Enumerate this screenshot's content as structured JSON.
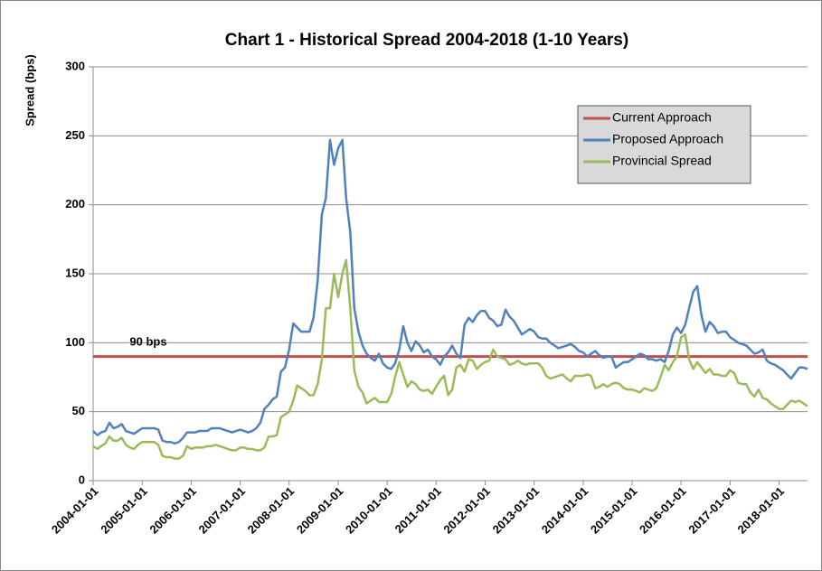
{
  "chart_data": {
    "type": "line",
    "title": "Chart 1 - Historical Spread 2004-2018 (1-10 Years)",
    "y_label": "Spread (bps)",
    "annotation": "90 bps",
    "legend": "upper right",
    "grid": true,
    "ylim": [
      0,
      300
    ],
    "yticks": [
      0,
      50,
      100,
      150,
      200,
      250,
      300
    ],
    "xlim": [
      "2004-01-01",
      "2018-08-01"
    ],
    "xticks": [
      "2004-01-01",
      "2005-01-01",
      "2006-01-01",
      "2007-01-01",
      "2008-01-01",
      "2009-01-01",
      "2010-01-01",
      "2011-01-01",
      "2012-01-01",
      "2013-01-01",
      "2014-01-01",
      "2015-01-01",
      "2016-01-01",
      "2017-01-01",
      "2018-01-01"
    ],
    "x": [
      "2004-01-01",
      "2004-02-01",
      "2004-03-01",
      "2004-04-01",
      "2004-05-01",
      "2004-06-01",
      "2004-07-01",
      "2004-08-01",
      "2004-09-01",
      "2004-10-01",
      "2004-11-01",
      "2004-12-01",
      "2005-01-01",
      "2005-02-01",
      "2005-03-01",
      "2005-04-01",
      "2005-05-01",
      "2005-06-01",
      "2005-07-01",
      "2005-08-01",
      "2005-09-01",
      "2005-10-01",
      "2005-11-01",
      "2005-12-01",
      "2006-01-01",
      "2006-02-01",
      "2006-03-01",
      "2006-04-01",
      "2006-05-01",
      "2006-06-01",
      "2006-07-01",
      "2006-08-01",
      "2006-09-01",
      "2006-10-01",
      "2006-11-01",
      "2006-12-01",
      "2007-01-01",
      "2007-02-01",
      "2007-03-01",
      "2007-04-01",
      "2007-05-01",
      "2007-06-01",
      "2007-07-01",
      "2007-08-01",
      "2007-09-01",
      "2007-10-01",
      "2007-11-01",
      "2007-12-01",
      "2008-01-01",
      "2008-02-01",
      "2008-03-01",
      "2008-04-01",
      "2008-05-01",
      "2008-06-01",
      "2008-07-01",
      "2008-08-01",
      "2008-09-01",
      "2008-10-01",
      "2008-11-01",
      "2008-12-01",
      "2009-01-01",
      "2009-02-01",
      "2009-03-01",
      "2009-04-01",
      "2009-05-01",
      "2009-06-01",
      "2009-07-01",
      "2009-08-01",
      "2009-09-01",
      "2009-10-01",
      "2009-11-01",
      "2009-12-01",
      "2010-01-01",
      "2010-02-01",
      "2010-03-01",
      "2010-04-01",
      "2010-05-01",
      "2010-06-01",
      "2010-07-01",
      "2010-08-01",
      "2010-09-01",
      "2010-10-01",
      "2010-11-01",
      "2010-12-01",
      "2011-01-01",
      "2011-02-01",
      "2011-03-01",
      "2011-04-01",
      "2011-05-01",
      "2011-06-01",
      "2011-07-01",
      "2011-08-01",
      "2011-09-01",
      "2011-10-01",
      "2011-11-01",
      "2011-12-01",
      "2012-01-01",
      "2012-02-01",
      "2012-03-01",
      "2012-04-01",
      "2012-05-01",
      "2012-06-01",
      "2012-07-01",
      "2012-08-01",
      "2012-09-01",
      "2012-10-01",
      "2012-11-01",
      "2012-12-01",
      "2013-01-01",
      "2013-02-01",
      "2013-03-01",
      "2013-04-01",
      "2013-05-01",
      "2013-06-01",
      "2013-07-01",
      "2013-08-01",
      "2013-09-01",
      "2013-10-01",
      "2013-11-01",
      "2013-12-01",
      "2014-01-01",
      "2014-02-01",
      "2014-03-01",
      "2014-04-01",
      "2014-05-01",
      "2014-06-01",
      "2014-07-01",
      "2014-08-01",
      "2014-09-01",
      "2014-10-01",
      "2014-11-01",
      "2014-12-01",
      "2015-01-01",
      "2015-02-01",
      "2015-03-01",
      "2015-04-01",
      "2015-05-01",
      "2015-06-01",
      "2015-07-01",
      "2015-08-01",
      "2015-09-01",
      "2015-10-01",
      "2015-11-01",
      "2015-12-01",
      "2016-01-01",
      "2016-02-01",
      "2016-03-01",
      "2016-04-01",
      "2016-05-01",
      "2016-06-01",
      "2016-07-01",
      "2016-08-01",
      "2016-09-01",
      "2016-10-01",
      "2016-11-01",
      "2016-12-01",
      "2017-01-01",
      "2017-02-01",
      "2017-03-01",
      "2017-04-01",
      "2017-05-01",
      "2017-06-01",
      "2017-07-01",
      "2017-08-01",
      "2017-09-01",
      "2017-10-01",
      "2017-11-01",
      "2017-12-01",
      "2018-01-01",
      "2018-02-01",
      "2018-03-01",
      "2018-04-01",
      "2018-05-01",
      "2018-06-01",
      "2018-07-01",
      "2018-08-01"
    ],
    "series": [
      {
        "name": "Current Approach",
        "color": "#c0504d",
        "x": [
          "2004-01-01",
          "2018-08-01"
        ],
        "values": [
          90,
          90
        ]
      },
      {
        "name": "Proposed Approach",
        "color": "#4f81bd",
        "values": [
          36,
          33,
          35,
          36,
          42,
          38,
          39,
          41,
          36,
          35,
          34,
          36,
          38,
          38,
          38,
          38,
          37,
          29,
          28,
          28,
          27,
          28,
          31,
          35,
          35,
          35,
          36,
          36,
          36,
          38,
          38,
          38,
          37,
          36,
          35,
          36,
          37,
          36,
          35,
          36,
          38,
          42,
          52,
          55,
          59,
          61,
          79,
          82,
          95,
          114,
          111,
          108,
          108,
          108,
          118,
          145,
          193,
          205,
          247,
          229,
          241,
          247,
          205,
          180,
          125,
          108,
          98,
          92,
          89,
          87,
          92,
          85,
          82,
          81,
          85,
          95,
          112,
          100,
          94,
          101,
          98,
          93,
          95,
          90,
          88,
          84,
          90,
          93,
          98,
          92,
          89,
          113,
          118,
          115,
          120,
          123,
          123,
          118,
          116,
          112,
          113,
          124,
          119,
          116,
          111,
          106,
          108,
          110,
          108,
          104,
          103,
          103,
          100,
          98,
          96,
          97,
          98,
          99,
          97,
          94,
          93,
          90,
          92,
          94,
          91,
          89,
          90,
          90,
          82,
          84,
          86,
          86,
          88,
          90,
          92,
          91,
          88,
          88,
          87,
          88,
          86,
          94,
          106,
          111,
          107,
          113,
          125,
          137,
          141,
          120,
          108,
          115,
          112,
          107,
          108,
          108,
          104,
          102,
          100,
          99,
          98,
          95,
          92,
          93,
          95,
          87,
          85,
          84,
          82,
          80,
          77,
          74,
          78,
          82,
          82,
          81
        ]
      },
      {
        "name": "Provincial Spread",
        "color": "#9bbb59",
        "values": [
          25,
          23,
          25,
          27,
          32,
          29,
          29,
          31,
          26,
          24,
          23,
          26,
          28,
          28,
          28,
          28,
          26,
          18,
          17,
          17,
          16,
          16,
          18,
          25,
          23,
          24,
          24,
          24,
          25,
          25,
          26,
          25,
          24,
          23,
          22,
          22,
          24,
          24,
          23,
          23,
          22,
          22,
          24,
          32,
          32,
          33,
          46,
          48,
          50,
          58,
          69,
          67,
          65,
          62,
          62,
          70,
          88,
          125,
          125,
          150,
          133,
          150,
          160,
          125,
          80,
          68,
          64,
          56,
          58,
          60,
          57,
          57,
          57,
          63,
          75,
          86,
          77,
          68,
          72,
          70,
          66,
          65,
          66,
          63,
          68,
          73,
          76,
          62,
          66,
          82,
          84,
          79,
          88,
          87,
          81,
          84,
          86,
          87,
          95,
          90,
          89,
          88,
          84,
          85,
          87,
          85,
          84,
          85,
          85,
          85,
          82,
          76,
          74,
          75,
          76,
          77,
          74,
          72,
          76,
          76,
          76,
          77,
          76,
          67,
          68,
          70,
          68,
          70,
          71,
          70,
          67,
          66,
          66,
          65,
          64,
          67,
          66,
          65,
          67,
          75,
          84,
          80,
          86,
          90,
          104,
          106,
          88,
          81,
          86,
          82,
          78,
          81,
          77,
          77,
          76,
          76,
          80,
          78,
          71,
          70,
          70,
          64,
          61,
          66,
          60,
          59,
          56,
          54,
          52,
          52,
          55,
          58,
          57,
          58,
          56,
          54
        ]
      }
    ]
  }
}
